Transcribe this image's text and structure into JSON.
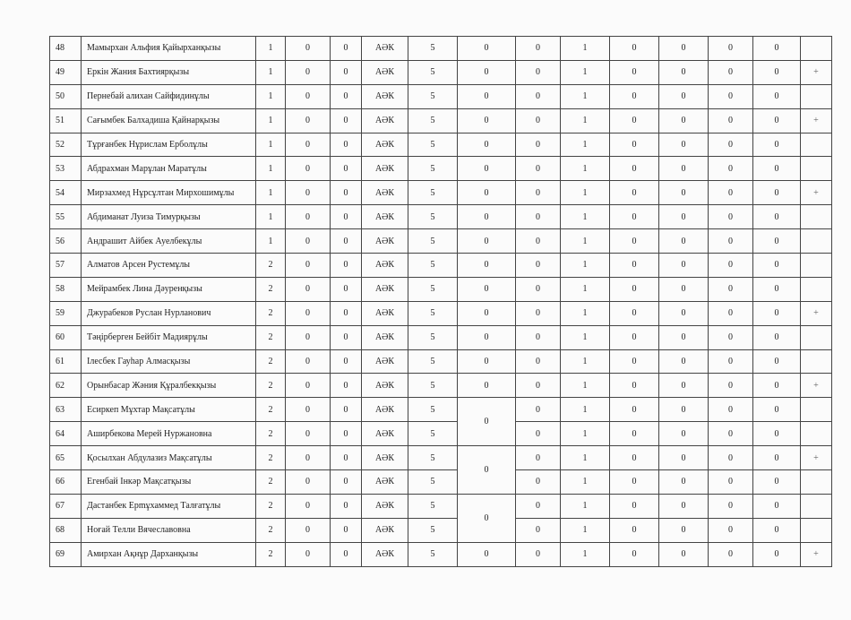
{
  "table": {
    "rows": [
      [
        48,
        "Мамырхан Альфия Қайырханқызы",
        1,
        0,
        0,
        "АӘК",
        5,
        0,
        0,
        1,
        0,
        0,
        0,
        0
      ],
      [
        49,
        "Еркін Жания Бахтиярқызы",
        1,
        0,
        0,
        "АӘК",
        5,
        0,
        0,
        1,
        0,
        0,
        0,
        0,
        "+"
      ],
      [
        50,
        "Пернебай алихан Сайфидинұлы",
        1,
        0,
        0,
        "АӘК",
        5,
        0,
        0,
        1,
        0,
        0,
        0,
        0
      ],
      [
        51,
        "Сағымбек  Балхадиша Қайнарқызы",
        1,
        0,
        0,
        "АӘК",
        5,
        0,
        0,
        1,
        0,
        0,
        0,
        0,
        "+"
      ],
      [
        52,
        "Тұрғанбек Нұрислам Ерболұлы",
        1,
        0,
        0,
        "АӘК",
        5,
        0,
        0,
        1,
        0,
        0,
        0,
        0
      ],
      [
        53,
        "Абдрахман Марұлан Маратұлы",
        1,
        0,
        0,
        "АӘК",
        5,
        0,
        0,
        1,
        0,
        0,
        0,
        0
      ],
      [
        54,
        "Мирзахмед Нұрсұлтан Мирхошимұлы",
        1,
        0,
        0,
        "АӘК",
        5,
        0,
        0,
        1,
        0,
        0,
        0,
        0,
        "+"
      ],
      [
        55,
        "Абдиманат Луиза Тимурқызы",
        1,
        0,
        0,
        "АӘК",
        5,
        0,
        0,
        1,
        0,
        0,
        0,
        0
      ],
      [
        56,
        "Андрашит Айбек Ауелбекұлы",
        1,
        0,
        0,
        "АӘК",
        5,
        0,
        0,
        1,
        0,
        0,
        0,
        0
      ],
      [
        57,
        "Алматов Арсен  Рустемұлы",
        2,
        0,
        0,
        "АӘК",
        5,
        0,
        0,
        1,
        0,
        0,
        0,
        0
      ],
      [
        58,
        "Мейрамбек Лина Дәуренқызы",
        2,
        0,
        0,
        "АӘК",
        5,
        0,
        0,
        1,
        0,
        0,
        0,
        0
      ],
      [
        59,
        "Джурабеков Руслан Нурланович",
        2,
        0,
        0,
        "АӘК",
        5,
        0,
        0,
        1,
        0,
        0,
        0,
        0,
        "+"
      ],
      [
        60,
        "Тәңірберген Бейбіт Мадиярұлы",
        2,
        0,
        0,
        "АӘК",
        5,
        0,
        0,
        1,
        0,
        0,
        0,
        0
      ],
      [
        61,
        "Ілесбек Гауһар Алмасқызы",
        2,
        0,
        0,
        "АӘК",
        5,
        0,
        0,
        1,
        0,
        0,
        0,
        0
      ],
      [
        62,
        "Орынбасар Жәния Құралбекқызы",
        2,
        0,
        0,
        "АӘК",
        5,
        0,
        0,
        1,
        0,
        0,
        0,
        0,
        "+"
      ],
      [
        63,
        "Есиркеп Мұхтар Мақсатұлы",
        2,
        0,
        0,
        "АӘК",
        5,
        0,
        0,
        1,
        0,
        0,
        0,
        0
      ],
      [
        64,
        "Аширбекова Мерей Нуржановна",
        2,
        0,
        0,
        "АӘК",
        5,
        null,
        0,
        1,
        0,
        0,
        0,
        0
      ],
      [
        65,
        "Қосылхан Абдулазиз Мақсатұлы",
        2,
        0,
        0,
        "АӘК",
        5,
        0,
        0,
        1,
        0,
        0,
        0,
        0,
        "+"
      ],
      [
        66,
        "Егенбай Інкәр Мақсатқызы",
        2,
        0,
        0,
        "АӘК",
        5,
        null,
        0,
        1,
        0,
        0,
        0,
        0
      ],
      [
        67,
        "Дастанбек Ерmұхаммед Талғатұлы",
        2,
        0,
        0,
        "АӘК",
        5,
        0,
        0,
        1,
        0,
        0,
        0,
        0
      ],
      [
        68,
        "Ноғай Телли Вячеславовна",
        2,
        0,
        0,
        "АӘК",
        5,
        null,
        0,
        1,
        0,
        0,
        0,
        0
      ],
      [
        69,
        "Амирхан Ақнұр Дарханқызы",
        2,
        0,
        0,
        "АӘК",
        5,
        0,
        0,
        1,
        0,
        0,
        0,
        0,
        "+"
      ]
    ]
  }
}
